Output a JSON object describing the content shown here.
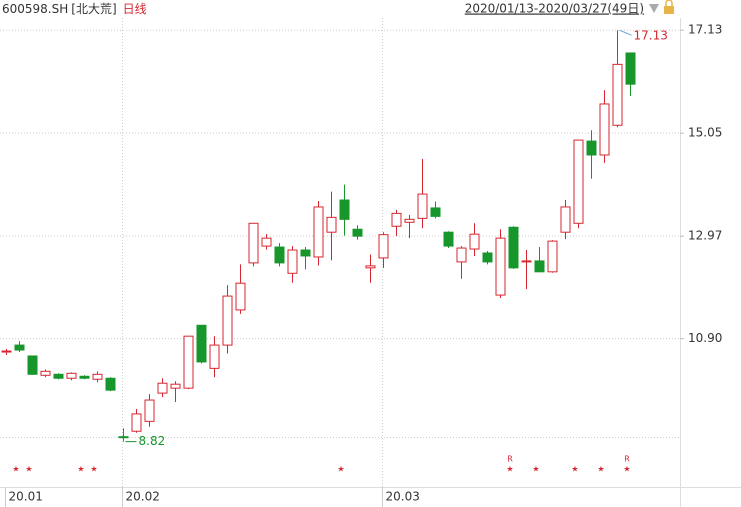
{
  "header": {
    "code": "600598.SH",
    "name": "[北大荒]",
    "period": "日线",
    "range": "2020/01/13-2020/03/27(49日)"
  },
  "chart_data": {
    "type": "candlestick",
    "categories": [
      "20.01",
      null,
      null,
      null,
      null,
      null,
      null,
      null,
      null,
      "20.02",
      null,
      null,
      null,
      null,
      null,
      null,
      null,
      null,
      null,
      null,
      null,
      null,
      null,
      null,
      null,
      null,
      null,
      null,
      null,
      "20.03",
      null,
      null,
      null,
      null,
      null,
      null,
      null,
      null,
      null,
      null,
      null,
      null,
      null,
      null,
      null,
      null,
      null,
      null,
      null
    ],
    "open": [
      10.63,
      10.77,
      10.55,
      10.16,
      10.18,
      10.1,
      10.14,
      10.08,
      10.1,
      8.92,
      9.03,
      9.23,
      9.8,
      9.9,
      9.9,
      11.17,
      10.3,
      10.77,
      11.48,
      12.43,
      12.77,
      12.75,
      12.22,
      12.69,
      12.55,
      13.05,
      13.7,
      13.11,
      12.33,
      12.53,
      13.17,
      13.25,
      13.33,
      13.54,
      13.05,
      12.45,
      12.71,
      12.63,
      11.78,
      13.15,
      12.45,
      12.47,
      12.25,
      13.05,
      13.23,
      14.89,
      14.61,
      15.21,
      16.67
    ],
    "high": [
      10.69,
      10.85,
      10.55,
      10.28,
      10.2,
      10.22,
      10.16,
      10.24,
      10.12,
      9.09,
      9.48,
      9.78,
      10.1,
      10.04,
      10.95,
      11.17,
      10.95,
      11.98,
      12.4,
      13.23,
      13.01,
      12.83,
      12.77,
      12.75,
      13.68,
      13.87,
      14.01,
      13.19,
      12.6,
      13.05,
      13.5,
      13.4,
      14.53,
      13.67,
      13.07,
      12.77,
      13.23,
      12.67,
      13.11,
      13.17,
      12.69,
      12.75,
      12.89,
      13.7,
      14.91,
      15.11,
      15.92,
      17.13,
      16.67
    ],
    "low": [
      10.57,
      10.63,
      10.17,
      10.12,
      10.08,
      10.06,
      10.08,
      10.02,
      9.84,
      8.82,
      9.0,
      9.12,
      9.72,
      9.62,
      9.88,
      10.4,
      10.12,
      10.6,
      11.4,
      12.36,
      12.7,
      12.36,
      12.03,
      12.3,
      12.38,
      12.48,
      12.98,
      12.9,
      12.03,
      12.33,
      12.97,
      12.93,
      13.13,
      13.33,
      12.73,
      12.11,
      12.57,
      12.4,
      11.72,
      12.31,
      11.9,
      12.25,
      12.23,
      12.91,
      13.13,
      14.13,
      14.45,
      15.17,
      15.8
    ],
    "close": [
      10.65,
      10.67,
      10.18,
      10.24,
      10.1,
      10.2,
      10.1,
      10.18,
      9.86,
      8.91,
      9.38,
      9.66,
      10.0,
      9.98,
      10.95,
      10.43,
      10.77,
      11.76,
      12.02,
      13.23,
      12.93,
      12.43,
      12.69,
      12.57,
      13.56,
      13.35,
      13.31,
      12.97,
      12.37,
      13.0,
      13.43,
      13.31,
      13.82,
      13.37,
      12.77,
      12.73,
      13.01,
      12.45,
      12.93,
      12.33,
      12.47,
      12.25,
      12.87,
      13.56,
      14.91,
      14.61,
      15.64,
      16.44,
      16.04
    ],
    "up_color": "#d7262f",
    "down_color": "#16962b",
    "markers": [
      "★",
      "★",
      null,
      null,
      null,
      "★",
      "★",
      null,
      null,
      null,
      null,
      null,
      null,
      null,
      null,
      null,
      null,
      null,
      null,
      null,
      null,
      null,
      null,
      null,
      null,
      "★",
      null,
      null,
      null,
      null,
      null,
      null,
      null,
      null,
      null,
      null,
      null,
      null,
      "★",
      null,
      "★",
      null,
      null,
      "★",
      null,
      "★",
      null,
      "★",
      null
    ],
    "marker_tags": [
      null,
      null,
      null,
      null,
      null,
      null,
      null,
      null,
      null,
      null,
      null,
      null,
      null,
      null,
      null,
      null,
      null,
      null,
      null,
      null,
      null,
      null,
      null,
      null,
      null,
      null,
      null,
      null,
      null,
      null,
      null,
      null,
      null,
      null,
      null,
      null,
      null,
      null,
      "R",
      null,
      null,
      null,
      null,
      null,
      null,
      null,
      null,
      "R",
      null
    ],
    "ylim": [
      8.55,
      17.74
    ],
    "yticks": [
      17.13,
      15.05,
      12.97,
      {
        "value": 10.9,
        "label": "10.90"
      }
    ],
    "grid": true
  }
}
